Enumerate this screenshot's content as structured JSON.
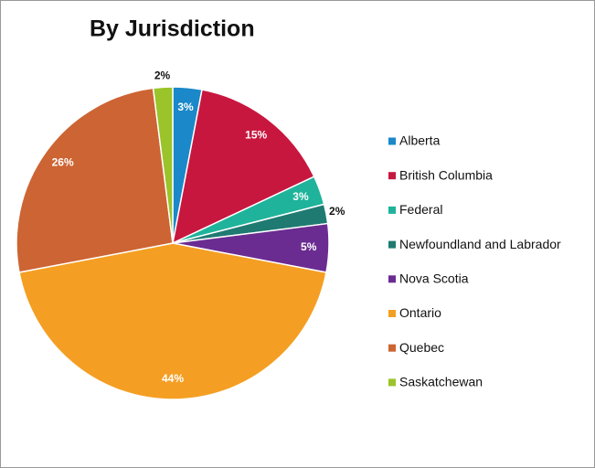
{
  "chart_data": {
    "type": "pie",
    "title": "By Jurisdiction",
    "categories": [
      "Alberta",
      "British Columbia",
      "Federal",
      "Newfoundland and Labrador",
      "Nova Scotia",
      "Ontario",
      "Quebec",
      "Saskatchewan"
    ],
    "values": [
      3,
      15,
      3,
      2,
      5,
      44,
      26,
      2
    ],
    "value_labels": [
      "3%",
      "15%",
      "3%",
      "2%",
      "5%",
      "44%",
      "26%",
      "2%"
    ],
    "colors": [
      "#1a88c9",
      "#c8173f",
      "#1fb39b",
      "#1f7a72",
      "#6b2c91",
      "#f49f23",
      "#cd6433",
      "#9ac42a"
    ],
    "legend": "right"
  }
}
